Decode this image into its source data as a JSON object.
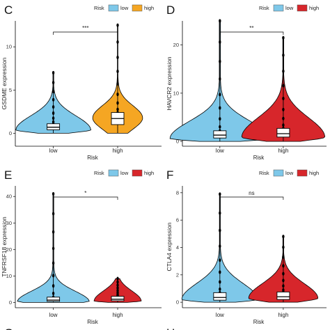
{
  "colors": {
    "low": "#7ec8e9",
    "high_C": "#f5a623",
    "high_other": "#d7262b",
    "box": "#ffffff",
    "outline": "#000000"
  },
  "chart_data": [
    {
      "panel": "C",
      "type": "violin",
      "title": "",
      "xlabel": "Risk",
      "ylabel": "GSDME expression",
      "legend_title": "Risk",
      "legend": [
        "low",
        "high"
      ],
      "categories": [
        "low",
        "high"
      ],
      "ylim": [
        -1.5,
        13
      ],
      "yticks": [
        0,
        5,
        10
      ],
      "significance": "***",
      "series": [
        {
          "name": "low",
          "color": "#7ec8e9",
          "median": 0.7,
          "q1": 0.4,
          "q3": 1.1,
          "min": 0,
          "max": 7.0,
          "mode": 0.4
        },
        {
          "name": "high",
          "color": "#f5a623",
          "median": 1.7,
          "q1": 1.0,
          "q3": 2.4,
          "min": 0,
          "max": 12.5,
          "mode": 1.8
        }
      ]
    },
    {
      "panel": "D",
      "type": "violin",
      "title": "",
      "xlabel": "Risk",
      "ylabel": "HAVCR2 expression",
      "legend_title": "Risk",
      "legend": [
        "low",
        "high"
      ],
      "categories": [
        "low",
        "high"
      ],
      "ylim": [
        -1,
        25
      ],
      "yticks": [
        0,
        10,
        20
      ],
      "significance": "**",
      "series": [
        {
          "name": "low",
          "color": "#7ec8e9",
          "median": 1.3,
          "q1": 0.7,
          "q3": 2.2,
          "min": 0,
          "max": 25.0,
          "mode": 0.6
        },
        {
          "name": "high",
          "color": "#d7262b",
          "median": 1.6,
          "q1": 0.9,
          "q3": 2.7,
          "min": 0,
          "max": 21.5,
          "mode": 0.9
        }
      ]
    },
    {
      "panel": "E",
      "type": "violin",
      "title": "",
      "xlabel": "Risk",
      "ylabel": "TNFRSF18 expression",
      "legend_title": "Risk",
      "legend": [
        "low",
        "high"
      ],
      "categories": [
        "low",
        "high"
      ],
      "ylim": [
        -2,
        44
      ],
      "yticks": [
        0,
        10,
        20,
        30,
        40
      ],
      "significance": "*",
      "series": [
        {
          "name": "low",
          "color": "#7ec8e9",
          "median": 0.9,
          "q1": 0.4,
          "q3": 2.0,
          "min": 0,
          "max": 41.0,
          "mode": 0.2
        },
        {
          "name": "high",
          "color": "#d7262b",
          "median": 1.2,
          "q1": 0.6,
          "q3": 2.3,
          "min": 0,
          "max": 9.0,
          "mode": 0.6
        }
      ]
    },
    {
      "panel": "F",
      "type": "violin",
      "title": "",
      "xlabel": "Risk",
      "ylabel": "CTLA4 expression",
      "legend_title": "Risk",
      "legend": [
        "low",
        "high"
      ],
      "categories": [
        "low",
        "high"
      ],
      "ylim": [
        -0.4,
        8.5
      ],
      "yticks": [
        0,
        2,
        4,
        6,
        8
      ],
      "significance": "ns",
      "series": [
        {
          "name": "low",
          "color": "#7ec8e9",
          "median": 0.35,
          "q1": 0.15,
          "q3": 0.7,
          "min": 0,
          "max": 7.9,
          "mode": 0.2
        },
        {
          "name": "high",
          "color": "#d7262b",
          "median": 0.4,
          "q1": 0.2,
          "q3": 0.75,
          "min": 0,
          "max": 4.8,
          "mode": 0.3
        }
      ]
    }
  ],
  "partial_panels": [
    "G",
    "H"
  ]
}
